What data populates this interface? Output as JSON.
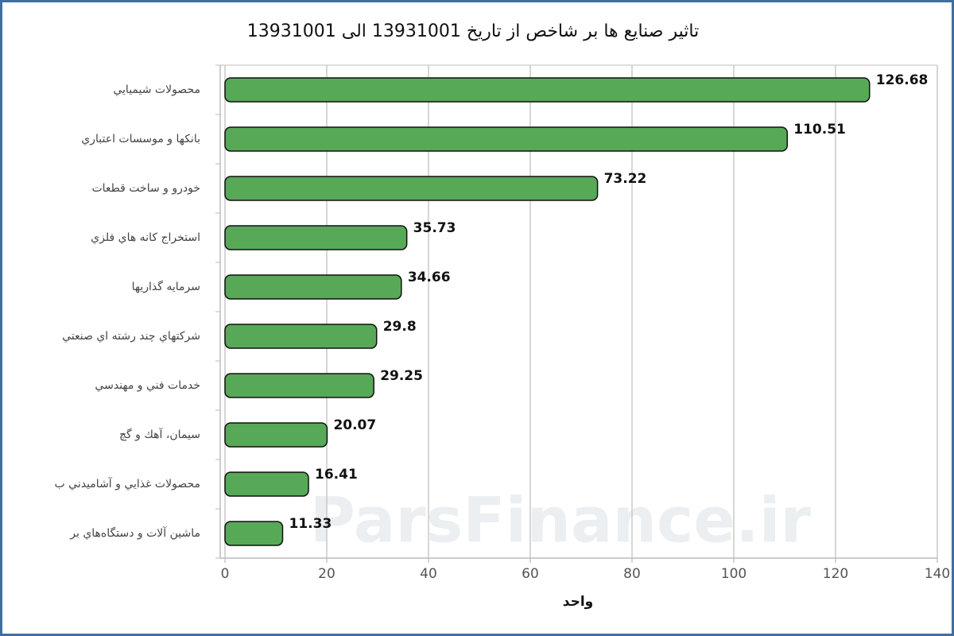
{
  "chart_data": {
    "type": "bar",
    "orientation": "horizontal",
    "title": "تاثير صنايع ها بر شاخص از تاريخ 13931001 الی 13931001",
    "categories": [
      "محصولات شيميايي",
      "بانكها و موسسات اعتباري",
      "خودرو و ساخت قطعات",
      "استخراج كانه هاي فلزي",
      "سرمايه گذاريها",
      "شركتهاي چند رشته اي صنعتي",
      "خدمات فني و مهندسي",
      "سيمان، آهك و گچ",
      "محصولات غذايي و آشاميدني ب",
      "ماشين آلات و دستگاه‌هاي بر"
    ],
    "values": [
      126.68,
      110.51,
      73.22,
      35.73,
      34.66,
      29.8,
      29.25,
      20.07,
      16.41,
      11.33
    ],
    "color": "#57a957",
    "xlim": [
      0,
      140
    ],
    "xticks": [
      0,
      20,
      40,
      60,
      80,
      100,
      120,
      140
    ],
    "xlabel": "واحد",
    "grid": true,
    "watermark": "ParsFinance.ir"
  }
}
